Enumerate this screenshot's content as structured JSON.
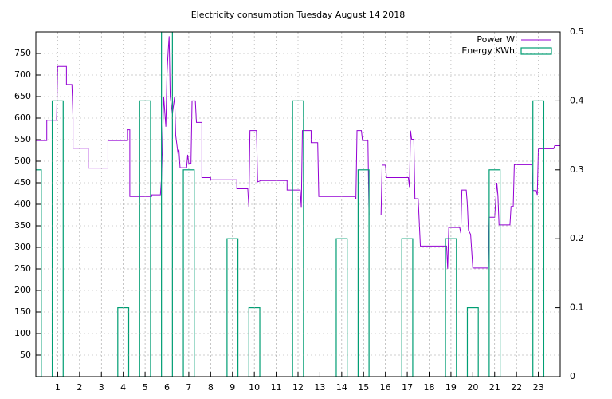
{
  "chart_data": {
    "type": "combo",
    "title": "Electricity consumption Tuesday August 14 2018",
    "xlim": [
      0,
      24
    ],
    "xticks": [
      1,
      2,
      3,
      4,
      5,
      6,
      7,
      8,
      9,
      10,
      11,
      12,
      13,
      14,
      15,
      16,
      17,
      18,
      19,
      20,
      21,
      22,
      23
    ],
    "ylim": [
      0,
      800
    ],
    "yticks": [
      50,
      100,
      150,
      200,
      250,
      300,
      350,
      400,
      450,
      500,
      550,
      600,
      650,
      700,
      750
    ],
    "y2lim": [
      0,
      0.5
    ],
    "y2ticks": [
      0,
      0.1,
      0.2,
      0.3,
      0.4,
      0.5
    ],
    "grid": true,
    "legend": "top-right",
    "series": [
      {
        "name": "Power W",
        "color": "#9400d3",
        "type": "line",
        "x": [
          0,
          0.5,
          0.5,
          0.95,
          1.0,
          1.4,
          1.4,
          1.65,
          1.7,
          1.7,
          2.4,
          2.4,
          3.3,
          3.3,
          4.2,
          4.2,
          4.3,
          4.3,
          5.3,
          5.3,
          5.7,
          5.75,
          5.8,
          5.85,
          5.95,
          6.0,
          6.05,
          6.1,
          6.15,
          6.25,
          6.35,
          6.4,
          6.5,
          6.55,
          6.6,
          6.9,
          6.95,
          7.0,
          7.1,
          7.15,
          7.3,
          7.35,
          7.6,
          7.6,
          8.0,
          8.0,
          9.2,
          9.2,
          9.7,
          9.75,
          9.8,
          10.1,
          10.15,
          10.3,
          11.5,
          11.5,
          12.1,
          12.15,
          12.2,
          12.6,
          12.6,
          12.9,
          12.95,
          14.6,
          14.65,
          14.7,
          14.9,
          14.95,
          15.2,
          15.25,
          15.8,
          15.85,
          16.0,
          16.05,
          17.05,
          17.1,
          17.15,
          17.2,
          17.3,
          17.35,
          17.5,
          17.6,
          18.8,
          18.85,
          18.9,
          19.4,
          19.45,
          19.5,
          19.7,
          19.75,
          19.8,
          19.9,
          20.0,
          20.7,
          20.75,
          21.0,
          21.1,
          21.15,
          21.2,
          21.7,
          21.75,
          21.85,
          21.9,
          22.7,
          22.75,
          22.9,
          22.95,
          23.0,
          23.7,
          23.75,
          24
        ],
        "values": [
          548,
          548,
          595,
          595,
          720,
          720,
          678,
          678,
          600,
          530,
          530,
          484,
          484,
          548,
          548,
          573,
          573,
          418,
          418,
          422,
          422,
          460,
          550,
          650,
          580,
          700,
          750,
          790,
          650,
          610,
          650,
          560,
          520,
          525,
          485,
          485,
          515,
          495,
          495,
          640,
          640,
          590,
          590,
          462,
          462,
          457,
          457,
          436,
          436,
          393,
          571,
          571,
          452,
          455,
          455,
          433,
          433,
          392,
          571,
          571,
          543,
          543,
          418,
          418,
          413,
          571,
          571,
          548,
          548,
          375,
          375,
          491,
          491,
          462,
          462,
          440,
          571,
          551,
          551,
          413,
          413,
          303,
          303,
          250,
          346,
          346,
          333,
          433,
          433,
          400,
          340,
          330,
          252,
          252,
          370,
          370,
          450,
          420,
          352,
          352,
          395,
          395,
          492,
          492,
          432,
          432,
          422,
          529,
          529,
          536,
          536
        ]
      },
      {
        "name": "Energy KWh",
        "color": "#009e73",
        "type": "bar",
        "axis": "y2",
        "x": [
          0,
          1,
          4,
          5,
          6,
          7,
          9,
          10,
          12,
          14,
          15,
          17,
          19,
          20,
          21,
          23
        ],
        "values": [
          0.3,
          0.4,
          0.1,
          0.4,
          0.5,
          0.3,
          0.2,
          0.1,
          0.4,
          0.2,
          0.3,
          0.2,
          0.2,
          0.1,
          0.3,
          0.4
        ]
      }
    ]
  }
}
